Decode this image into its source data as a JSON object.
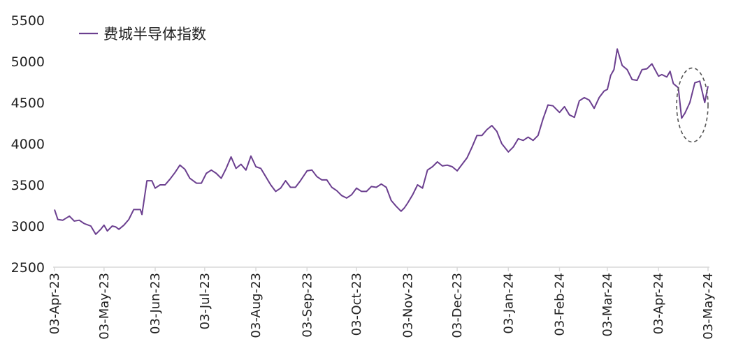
{
  "chart_data": {
    "type": "line",
    "title": "",
    "xlabel": "",
    "ylabel": "",
    "ylim": [
      2500,
      5500
    ],
    "yticks": [
      2500,
      3000,
      3500,
      4000,
      4500,
      5000,
      5500
    ],
    "x_tick_labels": [
      "03-Apr-23",
      "03-May-23",
      "03-Jun-23",
      "03-Jul-23",
      "03-Aug-23",
      "03-Sep-23",
      "03-Oct-23",
      "03-Nov-23",
      "03-Dec-23",
      "03-Jan-24",
      "03-Feb-24",
      "03-Mar-24",
      "03-Apr-24",
      "03-May-24"
    ],
    "grid": false,
    "legend_position": "top-left",
    "colors": {
      "series": "#6b3f8f",
      "axis": "#d9d9d9",
      "highlight": "#555555"
    },
    "highlight": {
      "style": "dashed-ellipse",
      "x_range": [
        "2024-04-14",
        "2024-05-03"
      ],
      "y_range": [
        4020,
        4920
      ]
    },
    "series": [
      {
        "name": "费城半导体指数",
        "x": [
          "2023-04-03",
          "2023-04-05",
          "2023-04-08",
          "2023-04-12",
          "2023-04-15",
          "2023-04-18",
          "2023-04-21",
          "2023-04-25",
          "2023-04-28",
          "2023-05-01",
          "2023-05-03",
          "2023-05-05",
          "2023-05-08",
          "2023-05-10",
          "2023-05-12",
          "2023-05-15",
          "2023-05-18",
          "2023-05-21",
          "2023-05-25",
          "2023-05-26",
          "2023-05-29",
          "2023-06-01",
          "2023-06-03",
          "2023-06-06",
          "2023-06-09",
          "2023-06-12",
          "2023-06-15",
          "2023-06-18",
          "2023-06-21",
          "2023-06-24",
          "2023-06-28",
          "2023-07-01",
          "2023-07-04",
          "2023-07-07",
          "2023-07-10",
          "2023-07-13",
          "2023-07-16",
          "2023-07-19",
          "2023-07-22",
          "2023-07-25",
          "2023-07-28",
          "2023-07-31",
          "2023-08-03",
          "2023-08-06",
          "2023-08-09",
          "2023-08-12",
          "2023-08-15",
          "2023-08-18",
          "2023-08-21",
          "2023-08-24",
          "2023-08-27",
          "2023-08-30",
          "2023-09-03",
          "2023-09-06",
          "2023-09-09",
          "2023-09-12",
          "2023-09-15",
          "2023-09-18",
          "2023-09-21",
          "2023-09-24",
          "2023-09-27",
          "2023-09-30",
          "2023-10-03",
          "2023-10-06",
          "2023-10-09",
          "2023-10-12",
          "2023-10-15",
          "2023-10-18",
          "2023-10-21",
          "2023-10-24",
          "2023-10-27",
          "2023-10-30",
          "2023-11-01",
          "2023-11-03",
          "2023-11-06",
          "2023-11-09",
          "2023-11-12",
          "2023-11-15",
          "2023-11-18",
          "2023-11-21",
          "2023-11-24",
          "2023-11-27",
          "2023-11-30",
          "2023-12-03",
          "2023-12-06",
          "2023-12-09",
          "2023-12-12",
          "2023-12-15",
          "2023-12-18",
          "2023-12-21",
          "2023-12-24",
          "2023-12-27",
          "2023-12-30",
          "2024-01-03",
          "2024-01-06",
          "2024-01-09",
          "2024-01-12",
          "2024-01-15",
          "2024-01-18",
          "2024-01-21",
          "2024-01-24",
          "2024-01-27",
          "2024-01-30",
          "2024-02-03",
          "2024-02-06",
          "2024-02-09",
          "2024-02-12",
          "2024-02-15",
          "2024-02-18",
          "2024-02-21",
          "2024-02-24",
          "2024-02-27",
          "2024-03-01",
          "2024-03-03",
          "2024-03-05",
          "2024-03-07",
          "2024-03-09",
          "2024-03-12",
          "2024-03-15",
          "2024-03-18",
          "2024-03-21",
          "2024-03-24",
          "2024-03-27",
          "2024-03-30",
          "2024-04-03",
          "2024-04-05",
          "2024-04-08",
          "2024-04-10",
          "2024-04-12",
          "2024-04-15",
          "2024-04-17",
          "2024-04-19",
          "2024-04-22",
          "2024-04-25",
          "2024-04-28",
          "2024-05-01",
          "2024-05-03"
        ],
        "values": [
          3200,
          3080,
          3070,
          3120,
          3060,
          3070,
          3030,
          3000,
          2900,
          2960,
          3010,
          2940,
          3000,
          2990,
          2960,
          3010,
          3080,
          3200,
          3200,
          3140,
          3550,
          3550,
          3460,
          3500,
          3500,
          3570,
          3650,
          3740,
          3690,
          3580,
          3520,
          3520,
          3640,
          3680,
          3640,
          3580,
          3700,
          3840,
          3700,
          3750,
          3680,
          3850,
          3720,
          3700,
          3600,
          3500,
          3420,
          3460,
          3550,
          3470,
          3470,
          3550,
          3670,
          3680,
          3600,
          3560,
          3560,
          3470,
          3430,
          3370,
          3340,
          3380,
          3460,
          3420,
          3420,
          3480,
          3470,
          3510,
          3470,
          3310,
          3240,
          3180,
          3220,
          3280,
          3380,
          3500,
          3460,
          3680,
          3720,
          3780,
          3730,
          3740,
          3720,
          3670,
          3750,
          3830,
          3960,
          4100,
          4100,
          4170,
          4220,
          4150,
          4000,
          3900,
          3960,
          4060,
          4040,
          4080,
          4040,
          4100,
          4300,
          4470,
          4460,
          4380,
          4450,
          4350,
          4320,
          4520,
          4560,
          4530,
          4430,
          4560,
          4640,
          4660,
          4830,
          4900,
          5150,
          4950,
          4900,
          4780,
          4770,
          4900,
          4910,
          4970,
          4820,
          4840,
          4810,
          4880,
          4730,
          4680,
          4310,
          4370,
          4500,
          4740,
          4760,
          4500,
          4700
        ]
      }
    ]
  }
}
